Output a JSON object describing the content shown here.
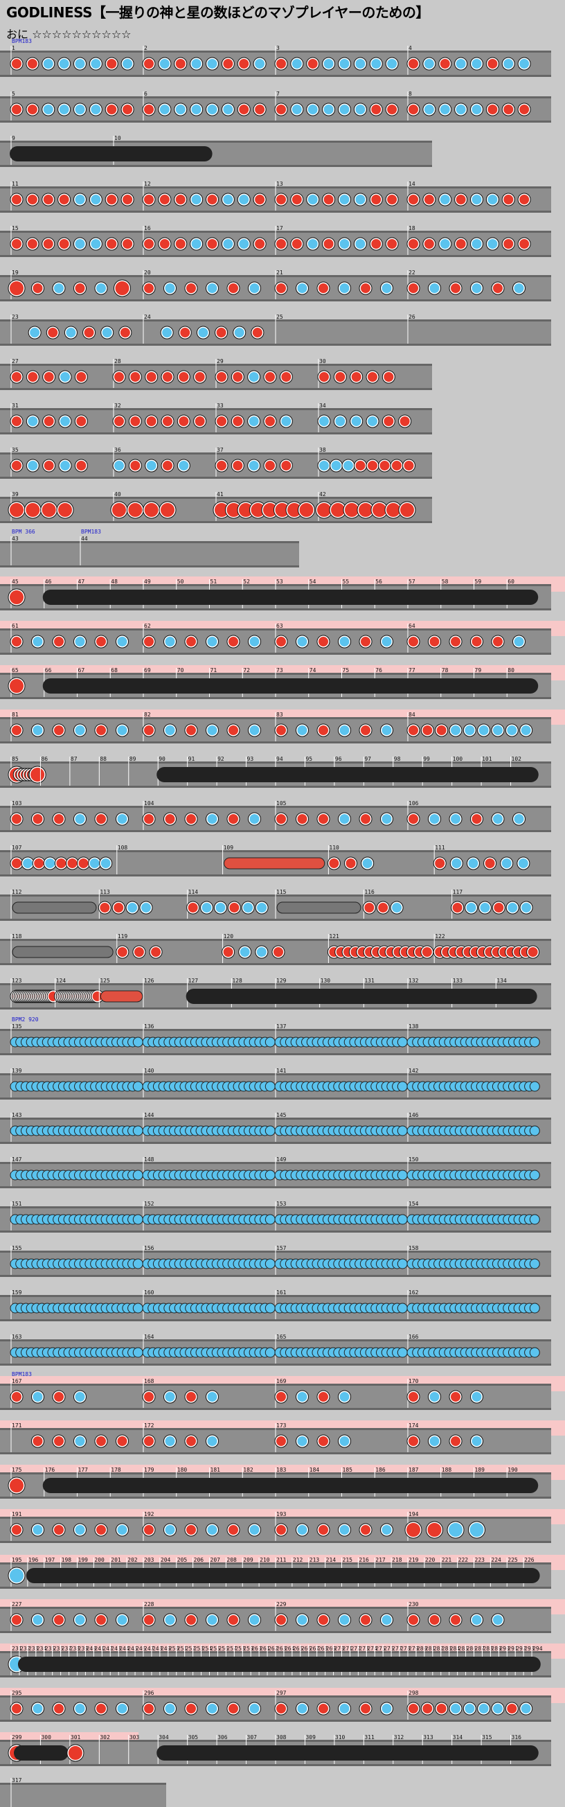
{
  "title": "GODLINESS【一握りの神と星の数ほどのマゾプレイヤーのための】",
  "difficulty": "おに ☆☆☆☆☆☆☆☆☆☆",
  "colors": {
    "background": "#c9c9c9",
    "lane": "#8e8e8e",
    "gogo": "#f8c8c8",
    "don": "#e8392a",
    "ka": "#5bc3ee",
    "roll": "#222222",
    "balloon_roll": "#e05040",
    "bpm_text": "#1a1acc"
  },
  "rows": [
    {
      "bars": [
        {
          "n": "1",
          "p": "rrbbbbrb",
          "bpm": "BPM183"
        },
        {
          "n": "2",
          "p": "rbrbbrrb"
        },
        {
          "n": "3",
          "p": "rbrbbbbb"
        },
        {
          "n": "4",
          "p": "rbrbbrbb"
        }
      ]
    },
    {
      "bars": [
        {
          "n": "5",
          "p": "rrbbbbrr"
        },
        {
          "n": "6",
          "p": "rbbbbbrr"
        },
        {
          "n": "7",
          "p": "rbbbbbrr"
        },
        {
          "n": "8",
          "p": "rbbbbrrr"
        }
      ]
    },
    {
      "bars": [
        {
          "n": "9",
          "roll": true
        },
        {
          "n": "10",
          "rollend": true
        }
      ],
      "short": true
    },
    {
      "bars": [
        {
          "n": "11",
          "p": "rrrrbbrr"
        },
        {
          "n": "12",
          "p": "rrrbrbbr"
        },
        {
          "n": "13",
          "p": "rrbrbbrr"
        },
        {
          "n": "14",
          "p": "rrbrbbrr"
        }
      ]
    },
    {
      "bars": [
        {
          "n": "15",
          "p": "rrrrbbrr"
        },
        {
          "n": "16",
          "p": "rrrbrbbr"
        },
        {
          "n": "17",
          "p": "rrbrbbrr"
        },
        {
          "n": "18",
          "p": "rrbrbbrr"
        }
      ]
    },
    {
      "bars": [
        {
          "n": "19",
          "p": "RrbrbR"
        },
        {
          "n": "20",
          "p": "rbrbrb"
        },
        {
          "n": "21",
          "p": "rbrbrb"
        },
        {
          "n": "22",
          "p": "rbrbrb"
        }
      ]
    },
    {
      "bars": [
        {
          "n": "23",
          "p": "0brbrbr"
        },
        {
          "n": "24",
          "p": "0brbrbr"
        },
        {
          "n": "25",
          "p": ""
        },
        {
          "n": "26",
          "p": ""
        }
      ]
    },
    {
      "bars": [
        {
          "n": "27",
          "p": "rrrbr"
        },
        {
          "n": "28",
          "p": "rrrrrr"
        },
        {
          "n": "29",
          "p": "rrbrr"
        },
        {
          "n": "30",
          "p": "rrrrr"
        }
      ],
      "short": true
    },
    {
      "bars": [
        {
          "n": "31",
          "p": "rbrbr"
        },
        {
          "n": "32",
          "p": "rrrrrr"
        },
        {
          "n": "33",
          "p": "rrbrb"
        },
        {
          "n": "34",
          "p": "bbbbrr"
        }
      ],
      "short": true
    },
    {
      "bars": [
        {
          "n": "35",
          "p": "rbrbr"
        },
        {
          "n": "36",
          "p": "brbrb"
        },
        {
          "n": "37",
          "p": "rrbrr"
        },
        {
          "n": "38",
          "p": "bbbrrrrr"
        }
      ],
      "short": true
    },
    {
      "bars": [
        {
          "n": "39",
          "p": "RRRR"
        },
        {
          "n": "40",
          "p": "RRRR"
        },
        {
          "n": "41",
          "p": "RRRRRRRR"
        },
        {
          "n": "42",
          "p": "RRRRRRR"
        }
      ],
      "short": true
    },
    {
      "bars": [
        {
          "n": "43",
          "p": "",
          "bpm": "BPM 366"
        },
        {
          "n": "44",
          "p": "",
          "bpm": "BPM183"
        }
      ],
      "short": true
    },
    {
      "gogo": true,
      "bars": [
        {
          "n": "45",
          "p": "R"
        },
        {
          "n": "46",
          "roll": true
        },
        {
          "n": "47"
        },
        {
          "n": "48"
        },
        {
          "n": "49"
        },
        {
          "n": "50"
        },
        {
          "n": "51"
        },
        {
          "n": "52"
        },
        {
          "n": "53"
        },
        {
          "n": "54"
        },
        {
          "n": "55"
        },
        {
          "n": "56"
        },
        {
          "n": "57"
        },
        {
          "n": "58"
        },
        {
          "n": "59"
        },
        {
          "n": "60",
          "rollend": true
        }
      ]
    },
    {
      "gogo": true,
      "bars": [
        {
          "n": "61",
          "p": "rbrbrb"
        },
        {
          "n": "62",
          "p": "rbrbrb"
        },
        {
          "n": "63",
          "p": "rbrbrb"
        },
        {
          "n": "64",
          "p": "rrrrrb"
        }
      ]
    },
    {
      "gogo": true,
      "bars": [
        {
          "n": "65",
          "p": "R"
        },
        {
          "n": "66",
          "roll": true
        },
        {
          "n": "67"
        },
        {
          "n": "68"
        },
        {
          "n": "69"
        },
        {
          "n": "70"
        },
        {
          "n": "71"
        },
        {
          "n": "72"
        },
        {
          "n": "73"
        },
        {
          "n": "74"
        },
        {
          "n": "75"
        },
        {
          "n": "76"
        },
        {
          "n": "77"
        },
        {
          "n": "78"
        },
        {
          "n": "79"
        },
        {
          "n": "80",
          "rollend": true
        }
      ]
    },
    {
      "gogo": true,
      "bars": [
        {
          "n": "81",
          "p": "rbrbrb"
        },
        {
          "n": "82",
          "p": "rbrbrb"
        },
        {
          "n": "83",
          "p": "rbrbrb"
        },
        {
          "n": "84",
          "p": "rrrbbbbbb"
        }
      ]
    },
    {
      "bars": [
        {
          "n": "85",
          "p": "RrrrrrrR"
        },
        {
          "n": "86",
          "p": ""
        },
        {
          "n": "87"
        },
        {
          "n": "88"
        },
        {
          "n": "89"
        },
        {
          "n": "90",
          "roll": true
        },
        {
          "n": "91"
        },
        {
          "n": "92"
        },
        {
          "n": "93"
        },
        {
          "n": "94"
        },
        {
          "n": "95"
        },
        {
          "n": "96"
        },
        {
          "n": "97"
        },
        {
          "n": "98"
        },
        {
          "n": "99"
        },
        {
          "n": "100"
        },
        {
          "n": "101"
        },
        {
          "n": "102",
          "rollend": true
        }
      ]
    },
    {
      "bars": [
        {
          "n": "103",
          "p": "rrrbrb"
        },
        {
          "n": "104",
          "p": "rrrbrb"
        },
        {
          "n": "105",
          "p": "rrrbrb"
        },
        {
          "n": "106",
          "p": "rbbrbb"
        }
      ]
    },
    {
      "bars": [
        {
          "n": "107",
          "p": "rbrbrrrbb"
        },
        {
          "n": "108",
          "p": ""
        },
        {
          "n": "109",
          "balloon": true
        },
        {
          "n": "110",
          "p": "rrb"
        },
        {
          "n": "111",
          "p": "rbbrbb"
        }
      ]
    },
    {
      "bars": [
        {
          "n": "112",
          "drum": true
        },
        {
          "n": "113",
          "p": "rrbb"
        },
        {
          "n": "114",
          "p": "rbbrbb"
        },
        {
          "n": "115",
          "drum": true
        },
        {
          "n": "116",
          "p": "rrb"
        },
        {
          "n": "117",
          "p": "rbbrbb"
        }
      ]
    },
    {
      "bars": [
        {
          "n": "118",
          "drum": true
        },
        {
          "n": "119",
          "p": "rrr"
        },
        {
          "n": "120",
          "p": "rbbr"
        },
        {
          "n": "121",
          "p": "rrrrrrrrrrrrrr"
        },
        {
          "n": "122",
          "p": "rrrrrrrrrrrrrr"
        }
      ]
    },
    {
      "bars": [
        {
          "n": "123",
          "p": "rrrrrrrrrrrrrrrrrrrrr"
        },
        {
          "n": "124",
          "p": "rrrrrrrrrrrrrrrrrrrrr"
        },
        {
          "n": "125",
          "balloon": true
        },
        {
          "n": "126"
        },
        {
          "n": "127",
          "roll": true
        },
        {
          "n": "128"
        },
        {
          "n": "129"
        },
        {
          "n": "130"
        },
        {
          "n": "131"
        },
        {
          "n": "132"
        },
        {
          "n": "133"
        },
        {
          "n": "134",
          "rollend": true
        }
      ]
    },
    {
      "bars": [
        {
          "n": "135",
          "dense": "b",
          "bpm": "BPM2 920"
        },
        {
          "n": "136",
          "dense": "b"
        },
        {
          "n": "137",
          "dense": "b"
        },
        {
          "n": "138",
          "dense": "b"
        }
      ]
    },
    {
      "bars": [
        {
          "n": "139",
          "dense": "b"
        },
        {
          "n": "140",
          "dense": "b"
        },
        {
          "n": "141",
          "dense": "b"
        },
        {
          "n": "142",
          "dense": "b"
        }
      ]
    },
    {
      "bars": [
        {
          "n": "143",
          "dense": "b"
        },
        {
          "n": "144",
          "dense": "b"
        },
        {
          "n": "145",
          "dense": "b"
        },
        {
          "n": "146",
          "dense": "b"
        }
      ]
    },
    {
      "bars": [
        {
          "n": "147",
          "dense": "b"
        },
        {
          "n": "148",
          "dense": "b"
        },
        {
          "n": "149",
          "dense": "b"
        },
        {
          "n": "150",
          "dense": "b"
        }
      ]
    },
    {
      "bars": [
        {
          "n": "151",
          "dense": "b"
        },
        {
          "n": "152",
          "dense": "b"
        },
        {
          "n": "153",
          "dense": "b"
        },
        {
          "n": "154",
          "dense": "b"
        }
      ]
    },
    {
      "bars": [
        {
          "n": "155",
          "dense": "b"
        },
        {
          "n": "156",
          "dense": "b"
        },
        {
          "n": "157",
          "dense": "b"
        },
        {
          "n": "158",
          "dense": "b"
        }
      ]
    },
    {
      "bars": [
        {
          "n": "159",
          "dense": "b"
        },
        {
          "n": "160",
          "dense": "b"
        },
        {
          "n": "161",
          "dense": "b"
        },
        {
          "n": "162",
          "dense": "b"
        }
      ]
    },
    {
      "bars": [
        {
          "n": "163",
          "dense": "b"
        },
        {
          "n": "164",
          "dense": "b"
        },
        {
          "n": "165",
          "dense": "b"
        },
        {
          "n": "166",
          "dense": "b"
        }
      ]
    },
    {
      "gogo": true,
      "bars": [
        {
          "n": "167",
          "p": "rbrb",
          "bpm": "BPM183"
        },
        {
          "n": "168",
          "p": "rbrb"
        },
        {
          "n": "169",
          "p": "rbrb"
        },
        {
          "n": "170",
          "p": "rbrb"
        }
      ]
    },
    {
      "gogo": true,
      "bars": [
        {
          "n": "171",
          "p": "0rrbrr"
        },
        {
          "n": "172",
          "p": "rbrb"
        },
        {
          "n": "173",
          "p": "rbrb"
        },
        {
          "n": "174",
          "p": "rbrb"
        }
      ]
    },
    {
      "gogo": true,
      "bars": [
        {
          "n": "175",
          "p": "R"
        },
        {
          "n": "176",
          "roll": true
        },
        {
          "n": "177"
        },
        {
          "n": "178"
        },
        {
          "n": "179"
        },
        {
          "n": "180"
        },
        {
          "n": "181"
        },
        {
          "n": "182"
        },
        {
          "n": "183"
        },
        {
          "n": "184"
        },
        {
          "n": "185"
        },
        {
          "n": "186"
        },
        {
          "n": "187"
        },
        {
          "n": "188"
        },
        {
          "n": "189"
        },
        {
          "n": "190",
          "rollend": true
        }
      ]
    },
    {
      "gogo": true,
      "bars": [
        {
          "n": "191",
          "p": "rbrbrb"
        },
        {
          "n": "192",
          "p": "rbrbrb"
        },
        {
          "n": "193",
          "p": "rbrbrb"
        },
        {
          "n": "194",
          "p": "RRBB"
        }
      ]
    },
    {
      "gogo": true,
      "bars": [
        {
          "n": "195",
          "p": "B"
        },
        {
          "n": "196",
          "roll": true
        },
        {
          "n": "197"
        },
        {
          "n": "198"
        },
        {
          "n": "199"
        },
        {
          "n": "200"
        },
        {
          "n": "201"
        },
        {
          "n": "202"
        },
        {
          "n": "203"
        },
        {
          "n": "204"
        },
        {
          "n": "205"
        },
        {
          "n": "206"
        },
        {
          "n": "207"
        },
        {
          "n": "208"
        },
        {
          "n": "209"
        },
        {
          "n": "210"
        },
        {
          "n": "211"
        },
        {
          "n": "212"
        },
        {
          "n": "213"
        },
        {
          "n": "214"
        },
        {
          "n": "215"
        },
        {
          "n": "216"
        },
        {
          "n": "217"
        },
        {
          "n": "218"
        },
        {
          "n": "219"
        },
        {
          "n": "220"
        },
        {
          "n": "221"
        },
        {
          "n": "222"
        },
        {
          "n": "223"
        },
        {
          "n": "224"
        },
        {
          "n": "225"
        },
        {
          "n": "226",
          "rollend": true
        }
      ]
    },
    {
      "gogo": true,
      "bars": [
        {
          "n": "227",
          "p": "rbrbrb"
        },
        {
          "n": "228",
          "p": "rbrbrb"
        },
        {
          "n": "229",
          "p": "rbrbrb"
        },
        {
          "n": "230",
          "p": "rrrbb"
        }
      ]
    },
    {
      "gogo": true,
      "ticks": true,
      "bars": [
        {
          "n": "231",
          "p": "B"
        },
        {
          "n": "232",
          "roll": true
        },
        {
          "n": "233"
        },
        {
          "n": "234"
        },
        {
          "n": "235"
        },
        {
          "n": "236"
        },
        {
          "n": "237"
        },
        {
          "n": "238"
        },
        {
          "n": "239"
        },
        {
          "n": "240"
        },
        {
          "n": "241"
        },
        {
          "n": "242"
        },
        {
          "n": "243"
        },
        {
          "n": "244"
        },
        {
          "n": "245"
        },
        {
          "n": "246"
        },
        {
          "n": "247"
        },
        {
          "n": "248"
        },
        {
          "n": "249"
        },
        {
          "n": "250"
        },
        {
          "n": "251"
        },
        {
          "n": "252"
        },
        {
          "n": "253"
        },
        {
          "n": "254"
        },
        {
          "n": "255"
        },
        {
          "n": "256"
        },
        {
          "n": "257"
        },
        {
          "n": "258"
        },
        {
          "n": "259"
        },
        {
          "n": "260"
        },
        {
          "n": "261"
        },
        {
          "n": "262"
        },
        {
          "n": "263"
        },
        {
          "n": "264"
        },
        {
          "n": "265"
        },
        {
          "n": "266"
        },
        {
          "n": "267"
        },
        {
          "n": "268"
        },
        {
          "n": "269"
        },
        {
          "n": "270"
        },
        {
          "n": "271"
        },
        {
          "n": "272"
        },
        {
          "n": "273"
        },
        {
          "n": "274"
        },
        {
          "n": "275"
        },
        {
          "n": "276"
        },
        {
          "n": "277"
        },
        {
          "n": "278"
        },
        {
          "n": "279"
        },
        {
          "n": "280"
        },
        {
          "n": "281"
        },
        {
          "n": "282"
        },
        {
          "n": "283"
        },
        {
          "n": "284"
        },
        {
          "n": "285"
        },
        {
          "n": "286"
        },
        {
          "n": "287"
        },
        {
          "n": "288"
        },
        {
          "n": "289"
        },
        {
          "n": "290"
        },
        {
          "n": "291"
        },
        {
          "n": "292"
        },
        {
          "n": "293"
        },
        {
          "n": "294",
          "rollend": true
        }
      ]
    },
    {
      "gogo": true,
      "bars": [
        {
          "n": "295",
          "p": "rbrbrb"
        },
        {
          "n": "296",
          "p": "rbrbrb"
        },
        {
          "n": "297",
          "p": "rbrbrb"
        },
        {
          "n": "298",
          "p": "rrrbbbbrb"
        }
      ]
    },
    {
      "gogoPartial": true,
      "bars": [
        {
          "n": "299",
          "p": "R",
          "roll": true
        },
        {
          "n": "300",
          "rollend": true
        },
        {
          "n": "301",
          "p": "R"
        },
        {
          "n": "302"
        },
        {
          "n": "303"
        },
        {
          "n": "304",
          "roll": true
        },
        {
          "n": "305"
        },
        {
          "n": "306"
        },
        {
          "n": "307"
        },
        {
          "n": "308"
        },
        {
          "n": "309"
        },
        {
          "n": "310"
        },
        {
          "n": "311"
        },
        {
          "n": "312"
        },
        {
          "n": "313"
        },
        {
          "n": "314"
        },
        {
          "n": "315"
        },
        {
          "n": "316",
          "rollend": true
        }
      ]
    },
    {
      "bars": [
        {
          "n": "317",
          "p": ""
        }
      ],
      "tiny": true
    }
  ]
}
